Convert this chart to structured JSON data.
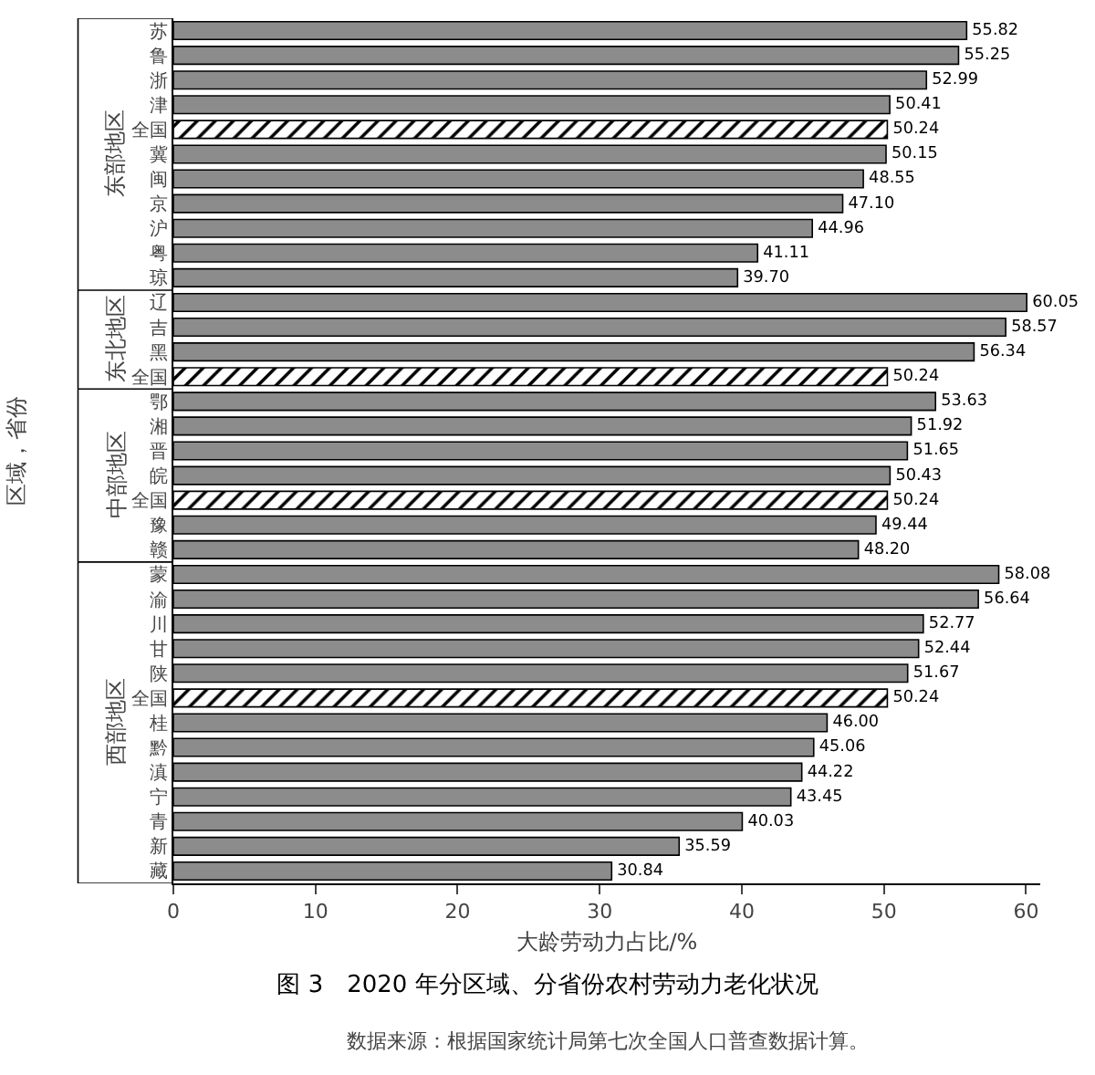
{
  "chart_data": {
    "type": "bar",
    "orientation": "horizontal",
    "title": "图 3　2020 年分区域、分省份农村劳动力老化状况",
    "xlabel": "大龄劳动力占比/%",
    "ylabel": "区域，省份",
    "categories": [
      "苏",
      "鲁",
      "浙",
      "津",
      "全国",
      "冀",
      "闽",
      "京",
      "沪",
      "粤",
      "琼",
      "辽",
      "吉",
      "黑",
      "全国",
      "鄂",
      "湘",
      "晋",
      "皖",
      "全国",
      "豫",
      "赣",
      "蒙",
      "渝",
      "川",
      "甘",
      "陕",
      "全国",
      "桂",
      "黔",
      "滇",
      "宁",
      "青",
      "新",
      "藏"
    ],
    "series": [
      {
        "color": "#8c8c8c",
        "values": [
          55.82,
          55.25,
          52.99,
          50.41,
          null,
          50.15,
          48.55,
          47.1,
          44.96,
          41.11,
          39.7,
          60.05,
          58.57,
          56.34,
          null,
          53.63,
          51.92,
          51.65,
          50.43,
          null,
          49.44,
          48.2,
          58.08,
          56.64,
          52.77,
          52.44,
          51.67,
          null,
          46.0,
          45.06,
          44.22,
          43.45,
          40.03,
          35.59,
          30.84
        ],
        "value_labels": [
          "55.82",
          "55.25",
          "52.99",
          "50.41",
          null,
          "50.15",
          "48.55",
          "47.10",
          "44.96",
          "41.11",
          "39.70",
          "60.05",
          "58.57",
          "56.34",
          null,
          "53.63",
          "51.92",
          "51.65",
          "50.43",
          null,
          "49.44",
          "48.20",
          "58.08",
          "56.64",
          "52.77",
          "52.44",
          "51.67",
          null,
          "46.00",
          "45.06",
          "44.22",
          "43.45",
          "40.03",
          "35.59",
          "30.84"
        ]
      },
      {
        "color": "#000000",
        "values": [
          null,
          null,
          null,
          null,
          50.24,
          null,
          null,
          null,
          null,
          null,
          null,
          null,
          null,
          null,
          50.24,
          null,
          null,
          null,
          null,
          50.24,
          null,
          null,
          null,
          null,
          null,
          null,
          null,
          50.24,
          null,
          null,
          null,
          null,
          null,
          null,
          null
        ],
        "value_labels": [
          null,
          null,
          null,
          null,
          "50.24",
          null,
          null,
          null,
          null,
          null,
          null,
          null,
          null,
          null,
          "50.24",
          null,
          null,
          null,
          null,
          "50.24",
          null,
          null,
          null,
          null,
          null,
          null,
          null,
          "50.24",
          null,
          null,
          null,
          null,
          null,
          null,
          null
        ]
      }
    ],
    "xlim": [
      0,
      61
    ],
    "xticks": [
      0,
      10,
      20,
      30,
      40,
      50,
      60
    ],
    "grid": false,
    "legend": false,
    "annotations": [
      "东部地区",
      "东北地区",
      "中部地区",
      "西部地区",
      "数据来源：根据国家统计局第七次全国人口普查数据计算。"
    ]
  }
}
